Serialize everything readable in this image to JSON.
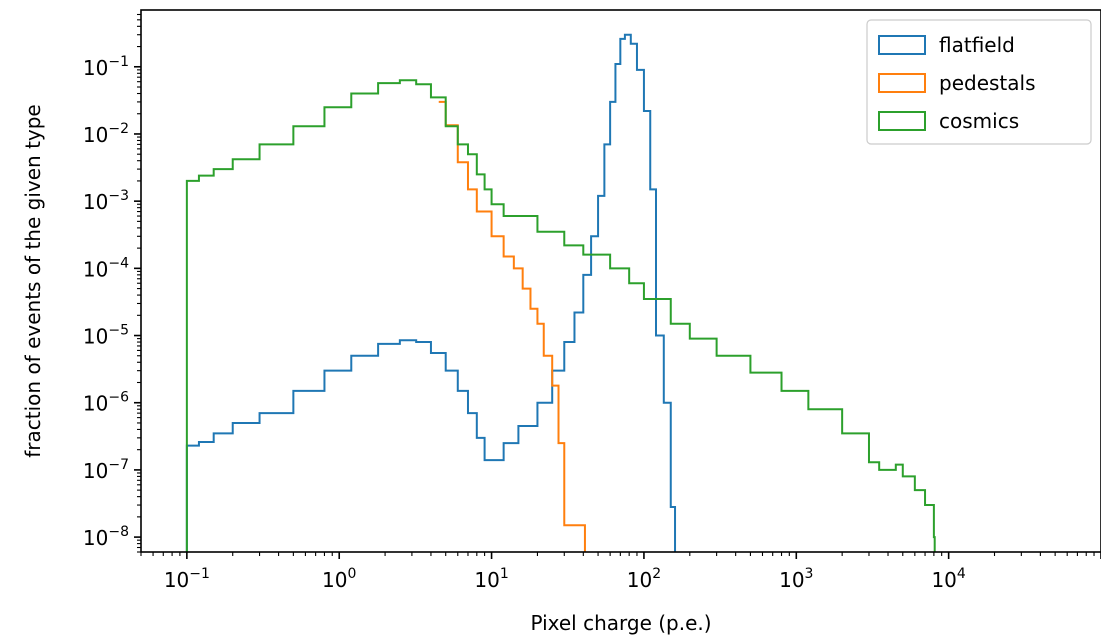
{
  "chart_data": {
    "type": "line",
    "drawstyle": "step-histogram",
    "title": "",
    "xlabel": "Pixel charge (p.e.)",
    "ylabel": "fraction of events of the given type",
    "xscale": "log",
    "yscale": "log",
    "xlim": [
      0.05,
      100000
    ],
    "ylim": [
      6e-09,
      0.7
    ],
    "xticks": [
      {
        "value": 0.1,
        "base": "10",
        "exp": "−1"
      },
      {
        "value": 1,
        "base": "10",
        "exp": "0"
      },
      {
        "value": 10,
        "base": "10",
        "exp": "1"
      },
      {
        "value": 100,
        "base": "10",
        "exp": "2"
      },
      {
        "value": 1000,
        "base": "10",
        "exp": "3"
      },
      {
        "value": 10000,
        "base": "10",
        "exp": "4"
      }
    ],
    "yticks": [
      {
        "value": 1e-08,
        "base": "10",
        "exp": "−8"
      },
      {
        "value": 1e-07,
        "base": "10",
        "exp": "−7"
      },
      {
        "value": 1e-06,
        "base": "10",
        "exp": "−6"
      },
      {
        "value": 1e-05,
        "base": "10",
        "exp": "−5"
      },
      {
        "value": 0.0001,
        "base": "10",
        "exp": "−4"
      },
      {
        "value": 0.001,
        "base": "10",
        "exp": "−3"
      },
      {
        "value": 0.01,
        "base": "10",
        "exp": "−2"
      },
      {
        "value": 0.1,
        "base": "10",
        "exp": "−1"
      }
    ],
    "grid": false,
    "legend_position": "top-right",
    "series": [
      {
        "name": "flatfield",
        "color": "#1f77b4",
        "points": [
          [
            0.1,
            1e-10
          ],
          [
            0.1,
            2.3e-07
          ],
          [
            0.12,
            2.6e-07
          ],
          [
            0.15,
            3.5e-07
          ],
          [
            0.2,
            5e-07
          ],
          [
            0.3,
            7e-07
          ],
          [
            0.5,
            1.5e-06
          ],
          [
            0.8,
            3e-06
          ],
          [
            1.2,
            5e-06
          ],
          [
            1.8,
            7.5e-06
          ],
          [
            2.5,
            8.5e-06
          ],
          [
            3.2,
            8e-06
          ],
          [
            4.0,
            5.5e-06
          ],
          [
            5.0,
            3e-06
          ],
          [
            6.0,
            1.5e-06
          ],
          [
            7.0,
            7e-07
          ],
          [
            8.0,
            3e-07
          ],
          [
            9.0,
            1.4e-07
          ],
          [
            12.0,
            2.5e-07
          ],
          [
            15.0,
            4.5e-07
          ],
          [
            20.0,
            1e-06
          ],
          [
            25.0,
            3e-06
          ],
          [
            30.0,
            8e-06
          ],
          [
            35.0,
            2.2e-05
          ],
          [
            40.0,
            8e-05
          ],
          [
            45.0,
            0.0003
          ],
          [
            50.0,
            0.0012
          ],
          [
            55.0,
            0.007
          ],
          [
            60.0,
            0.03
          ],
          [
            65.0,
            0.11
          ],
          [
            70.0,
            0.26
          ],
          [
            75.0,
            0.3
          ],
          [
            82.0,
            0.22
          ],
          [
            90.0,
            0.09
          ],
          [
            100.0,
            0.022
          ],
          [
            110.0,
            0.0015
          ],
          [
            120.0,
            1e-05
          ],
          [
            135.0,
            1e-06
          ],
          [
            150.0,
            2.8e-08
          ],
          [
            160.0,
            1e-10
          ]
        ]
      },
      {
        "name": "pedestals",
        "color": "#ff7f0e",
        "points": [
          [
            4.5,
            0.03
          ],
          [
            5.0,
            0.0135
          ],
          [
            6.0,
            0.0038
          ],
          [
            7.0,
            0.0015
          ],
          [
            8.0,
            0.0007
          ],
          [
            10.0,
            0.0003
          ],
          [
            12.0,
            0.00015
          ],
          [
            14.0,
            0.0001
          ],
          [
            16.0,
            5e-05
          ],
          [
            18.0,
            2.5e-05
          ],
          [
            20.0,
            1.5e-05
          ],
          [
            22.0,
            5e-06
          ],
          [
            25.0,
            1.8e-06
          ],
          [
            27.5,
            2.5e-07
          ],
          [
            30.0,
            1.5e-08
          ],
          [
            40.0,
            1.5e-08
          ],
          [
            41.0,
            1e-10
          ]
        ]
      },
      {
        "name": "cosmics",
        "color": "#2ca02c",
        "points": [
          [
            0.1,
            1e-10
          ],
          [
            0.1,
            0.002
          ],
          [
            0.12,
            0.0024
          ],
          [
            0.15,
            0.003
          ],
          [
            0.2,
            0.0042
          ],
          [
            0.3,
            0.007
          ],
          [
            0.5,
            0.013
          ],
          [
            0.8,
            0.025
          ],
          [
            1.2,
            0.04
          ],
          [
            1.8,
            0.057
          ],
          [
            2.5,
            0.063
          ],
          [
            3.2,
            0.055
          ],
          [
            4.0,
            0.035
          ],
          [
            5.0,
            0.013
          ],
          [
            6.0,
            0.007
          ],
          [
            7.0,
            0.005
          ],
          [
            8.0,
            0.0025
          ],
          [
            9.0,
            0.0015
          ],
          [
            10.0,
            0.0009
          ],
          [
            12.0,
            0.0006
          ],
          [
            20.0,
            0.00035
          ],
          [
            30.0,
            0.00022
          ],
          [
            40.0,
            0.00016
          ],
          [
            60.0,
            0.0001
          ],
          [
            80.0,
            6e-05
          ],
          [
            100.0,
            3.5e-05
          ],
          [
            150.0,
            1.5e-05
          ],
          [
            200.0,
            9e-06
          ],
          [
            300.0,
            5e-06
          ],
          [
            500.0,
            2.8e-06
          ],
          [
            800.0,
            1.5e-06
          ],
          [
            1200.0,
            8e-07
          ],
          [
            2000.0,
            3.5e-07
          ],
          [
            3000.0,
            1.3e-07
          ],
          [
            3500.0,
            1e-07
          ],
          [
            4500.0,
            1.2e-07
          ],
          [
            5000.0,
            8e-08
          ],
          [
            6000.0,
            5e-08
          ],
          [
            7000.0,
            3e-08
          ],
          [
            8000.0,
            1e-08
          ],
          [
            8100.0,
            1e-10
          ]
        ]
      }
    ]
  }
}
